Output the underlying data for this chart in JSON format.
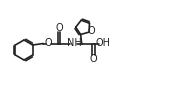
{
  "bg": "#ffffff",
  "lc": "#222222",
  "lw": 1.2,
  "figsize": [
    1.72,
    0.95
  ],
  "dpi": 100,
  "xlim": [
    0,
    17.2
  ],
  "ylim": [
    0,
    9.5
  ]
}
